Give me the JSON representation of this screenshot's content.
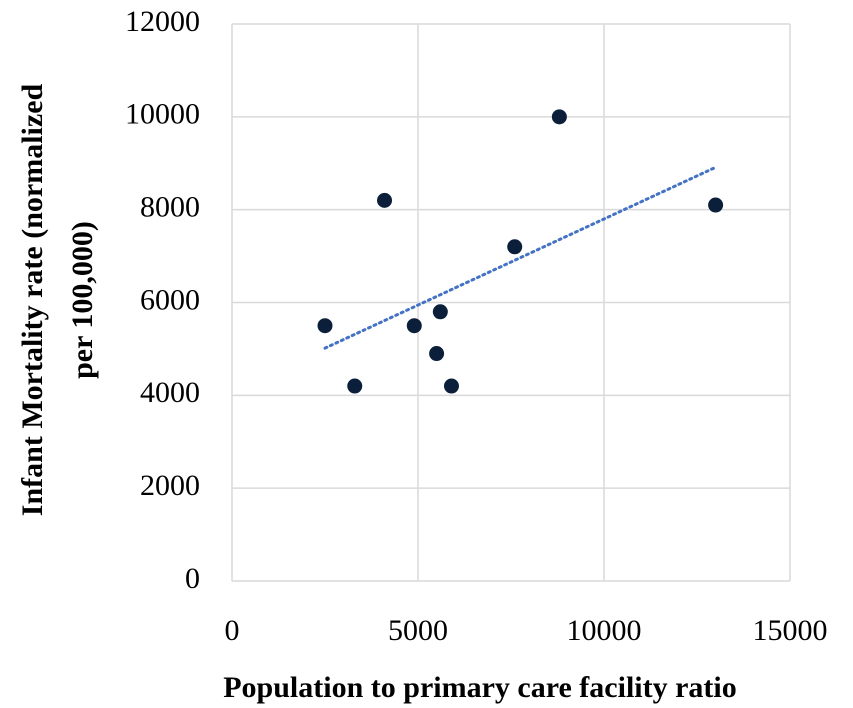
{
  "chart_data": {
    "type": "scatter",
    "xlabel": "Population to primary care facility ratio",
    "ylabel": [
      "Infant Mortality rate (normalized",
      "per 100,000)"
    ],
    "x": [
      2500,
      3300,
      4100,
      4900,
      5500,
      5600,
      5900,
      7600,
      8800,
      13000
    ],
    "values": [
      5500,
      4200,
      8200,
      5500,
      4900,
      5800,
      4200,
      7200,
      10000,
      8100
    ],
    "color": "#0b1f3a",
    "trendline": true,
    "trendline_color": "#4472c4",
    "xlim": [
      0,
      15000
    ],
    "xticks": [
      0,
      5000,
      10000,
      15000
    ],
    "ylim": [
      0,
      12000
    ],
    "yticks": [
      0,
      2000,
      4000,
      6000,
      8000,
      10000,
      12000
    ],
    "grid": true
  }
}
